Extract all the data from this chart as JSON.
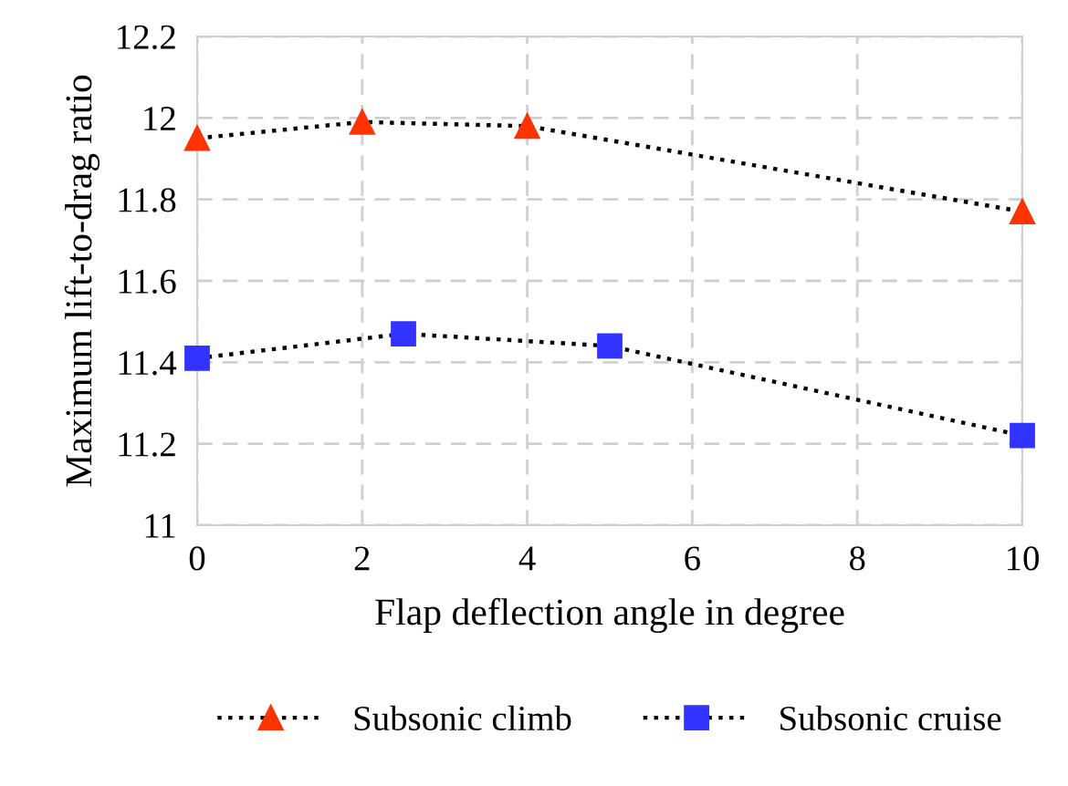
{
  "chart_data": {
    "type": "line",
    "xlabel": "Flap deflection angle in degree",
    "ylabel": "Maximum lift-to-drag ratio",
    "xlim": [
      0,
      10
    ],
    "xticks": [
      0,
      2,
      4,
      6,
      8,
      10
    ],
    "ylim": [
      11,
      12.2
    ],
    "yticks": [
      11,
      {
        "value": 11.2,
        "label": "11.2"
      },
      {
        "value": 11.4,
        "label": "11.4"
      },
      {
        "value": 11.6,
        "label": "11.6"
      },
      {
        "value": 11.8,
        "label": "11.8"
      },
      12,
      {
        "value": 12.2,
        "label": "12.2"
      }
    ],
    "grid": true,
    "legend": "bottom",
    "line_style": "dotted",
    "series": [
      {
        "name": "Subsonic climb",
        "color": "#ff3300",
        "marker": "triangle",
        "x": [
          0,
          2,
          4,
          10
        ],
        "values": [
          11.95,
          11.99,
          11.98,
          11.77
        ]
      },
      {
        "name": "Subsonic cruise",
        "color": "#3333ff",
        "marker": "square",
        "x": [
          0,
          2.5,
          5,
          10
        ],
        "values": [
          11.41,
          11.47,
          11.44,
          11.22
        ]
      }
    ]
  }
}
